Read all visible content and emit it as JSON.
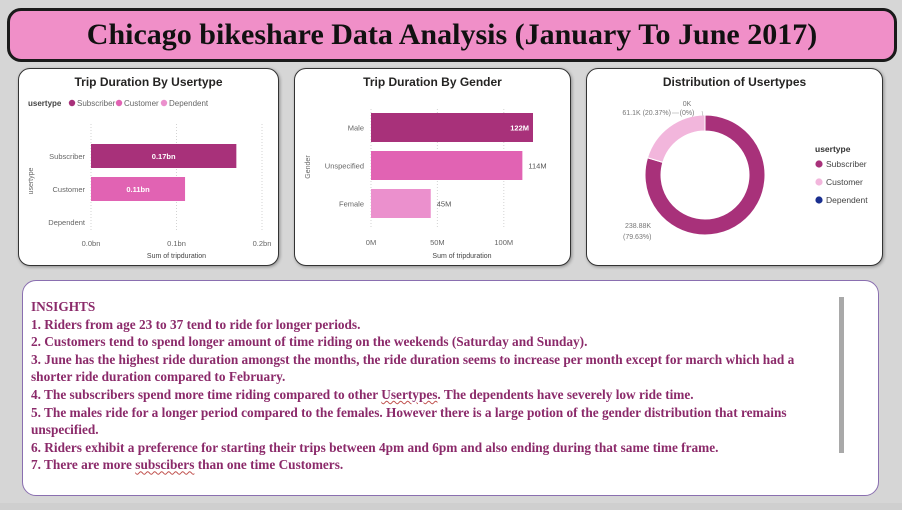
{
  "header": {
    "title": "Chicago bikeshare Data Analysis (January To June 2017)"
  },
  "colors": {
    "subscriber": "#a8317a",
    "customer": "#e163b3",
    "dependent": "#eb90cd",
    "dependent_legend": "#1a2f8f",
    "donut_customer": "#f2b6dc"
  },
  "chart_data": [
    {
      "type": "bar",
      "title": "Trip Duration By Usertype",
      "legend_title": "usertype",
      "legend": [
        "Subscriber",
        "Customer",
        "Dependent"
      ],
      "categories": [
        "Subscriber",
        "Customer",
        "Dependent"
      ],
      "values": [
        0.17,
        0.11,
        0
      ],
      "data_labels": [
        "0.17bn",
        "0.11bn",
        ""
      ],
      "xlabel": "Sum of tripduration",
      "ylabel": "usertype",
      "xticks": [
        "0.0bn",
        "0.1bn",
        "0.2bn"
      ],
      "xlim": [
        0,
        0.2
      ],
      "unit": "bn",
      "grid": true,
      "orientation": "horizontal"
    },
    {
      "type": "bar",
      "title": "Trip Duration By Gender",
      "categories": [
        "Male",
        "Unspecified",
        "Female"
      ],
      "values": [
        122,
        114,
        45
      ],
      "data_labels": [
        "122M",
        "114M",
        "45M"
      ],
      "xlabel": "Sum of tripduration",
      "ylabel": "Gender",
      "xticks": [
        "0M",
        "50M",
        "100M"
      ],
      "xlim": [
        0,
        122
      ],
      "unit": "M",
      "grid": true,
      "orientation": "horizontal"
    },
    {
      "type": "pie",
      "title": "Distribution of Usertypes",
      "legend_title": "usertype",
      "legend": [
        "Subscriber",
        "Customer",
        "Dependent"
      ],
      "values": [
        238880,
        61100,
        0
      ],
      "data_labels": [
        "238.88K",
        "61.1K (20.37%)",
        "0K"
      ],
      "percent_labels": [
        "(79.63%)",
        "",
        "(0%)"
      ],
      "legend_placement": "right"
    }
  ],
  "insights": {
    "heading": "INSIGHTS",
    "items": [
      "1. Riders from age 23 to 37 tend to ride for longer periods.",
      "2. Customers tend to spend longer amount of time riding on the weekends (Saturday and Sunday).",
      "3. June has the highest ride duration amongst the months, the ride duration seems to increase per month except for march which had a shorter ride duration compared to February.",
      "4. The subscribers spend more time riding compared to other Usertypes. The dependents have severely low  ride time.",
      "5. The males ride for a longer period compared to the females. However there is a large potion of the gender distribution that remains unspecified.",
      "6. Riders exhibit a preference for starting their trips between 4pm and 6pm and also ending during that same time frame.",
      "7. There are more subscibers than one time Customers."
    ]
  }
}
